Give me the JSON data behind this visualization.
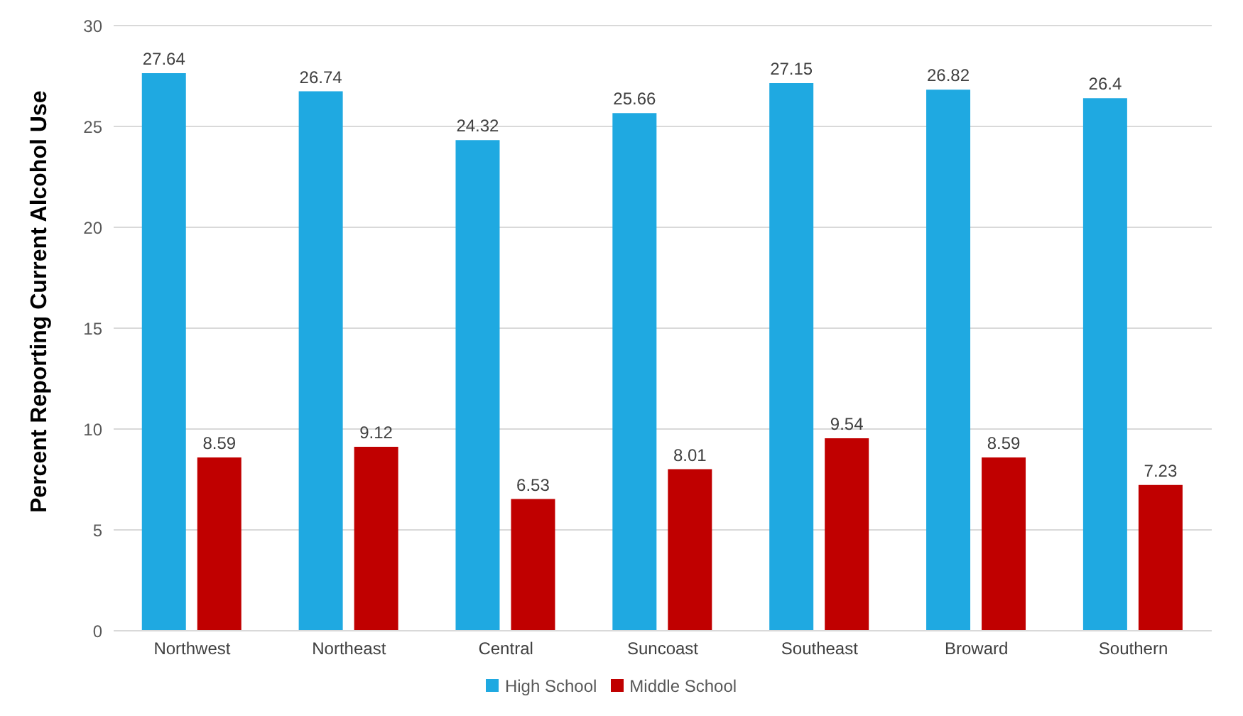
{
  "chart_data": {
    "type": "bar",
    "ylabel": "Percent Reporting Current Alcohol Use",
    "categories": [
      "Northwest",
      "Northeast",
      "Central",
      "Suncoast",
      "Southeast",
      "Broward",
      "Southern"
    ],
    "series": [
      {
        "name": "High School",
        "color": "#1fa9e1",
        "values": [
          27.64,
          26.74,
          24.32,
          25.66,
          27.15,
          26.82,
          26.4
        ]
      },
      {
        "name": "Middle School",
        "color": "#c00000",
        "values": [
          8.59,
          9.12,
          6.53,
          8.01,
          9.54,
          8.59,
          7.23
        ]
      }
    ],
    "ylim": [
      0,
      30
    ],
    "yticks": [
      0,
      5,
      10,
      15,
      20,
      25,
      30
    ],
    "grid": "y",
    "legend": "bottom",
    "data_labels": true
  }
}
